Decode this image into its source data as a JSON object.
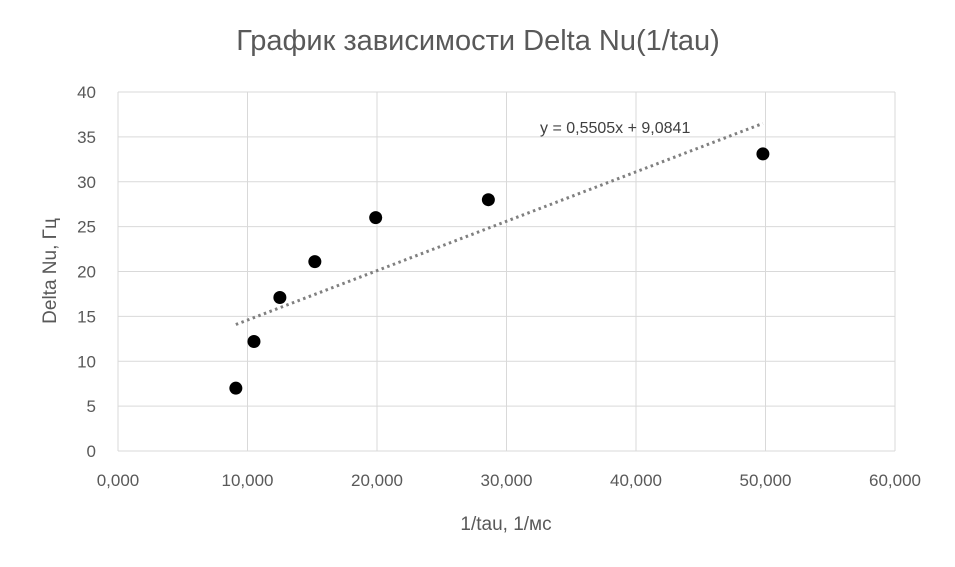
{
  "chart_data": {
    "type": "scatter",
    "title": "График зависимости Delta Nu(1/tau)",
    "xlabel": "1/tau, 1/мс",
    "ylabel": "Delta Nu, Гц",
    "xlim": [
      0,
      60
    ],
    "ylim": [
      0,
      40
    ],
    "x_ticks": [
      "0,000",
      "10,000",
      "20,000",
      "30,000",
      "40,000",
      "50,000",
      "60,000"
    ],
    "y_ticks": [
      "0",
      "5",
      "10",
      "15",
      "20",
      "25",
      "30",
      "35",
      "40"
    ],
    "grid": true,
    "points": [
      {
        "x": 9.1,
        "y": 7.0
      },
      {
        "x": 10.5,
        "y": 12.2
      },
      {
        "x": 12.5,
        "y": 17.1
      },
      {
        "x": 15.2,
        "y": 21.1
      },
      {
        "x": 19.9,
        "y": 26.0
      },
      {
        "x": 28.6,
        "y": 28.0
      },
      {
        "x": 49.8,
        "y": 33.1
      }
    ],
    "trendline": {
      "type": "linear",
      "slope": 0.5505,
      "intercept": 9.0841,
      "x_range": [
        9.1,
        49.8
      ],
      "equation_label": "y = 0,5505x + 9,0841"
    },
    "colors": {
      "points": "#000000",
      "trendline": "#808080",
      "grid": "#d9d9d9",
      "text": "#595959"
    }
  }
}
